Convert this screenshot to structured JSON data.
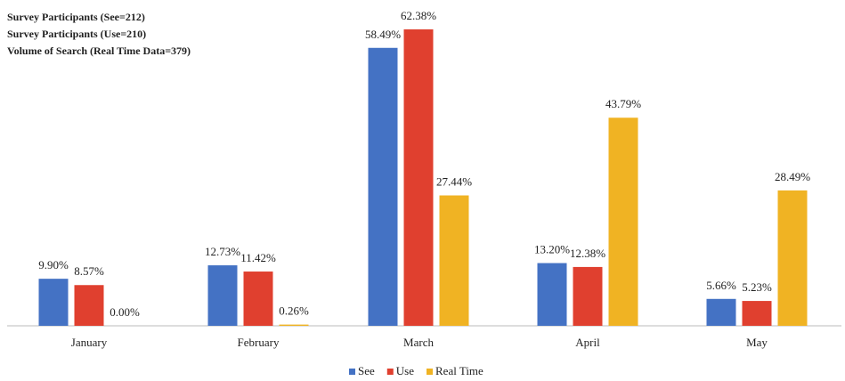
{
  "chart_data": {
    "type": "bar",
    "annotations": [
      "Survey Participants (See=212)",
      "Survey Participants (Use=210)",
      "Volume of Search (Real Time Data=379)"
    ],
    "categories": [
      "January",
      "February",
      "March",
      "April",
      "May"
    ],
    "series": [
      {
        "name": "See",
        "color": "#4472c4",
        "values": [
          9.9,
          12.73,
          58.49,
          13.2,
          5.66
        ],
        "value_labels": [
          "9.90%",
          "12.73%",
          "58.49%",
          "13.20%",
          "5.66%"
        ]
      },
      {
        "name": "Use",
        "color": "#e0402f",
        "values": [
          8.57,
          11.42,
          62.38,
          12.38,
          5.23
        ],
        "value_labels": [
          "8.57%",
          "11.42%",
          "62.38%",
          "12.38%",
          "5.23%"
        ]
      },
      {
        "name": "Real Time",
        "color": "#f0b323",
        "values": [
          0.0,
          0.26,
          27.44,
          43.79,
          28.49
        ],
        "value_labels": [
          "0.00%",
          "0.26%",
          "27.44%",
          "43.79%",
          "28.49%"
        ]
      }
    ],
    "legend": "bottom"
  }
}
